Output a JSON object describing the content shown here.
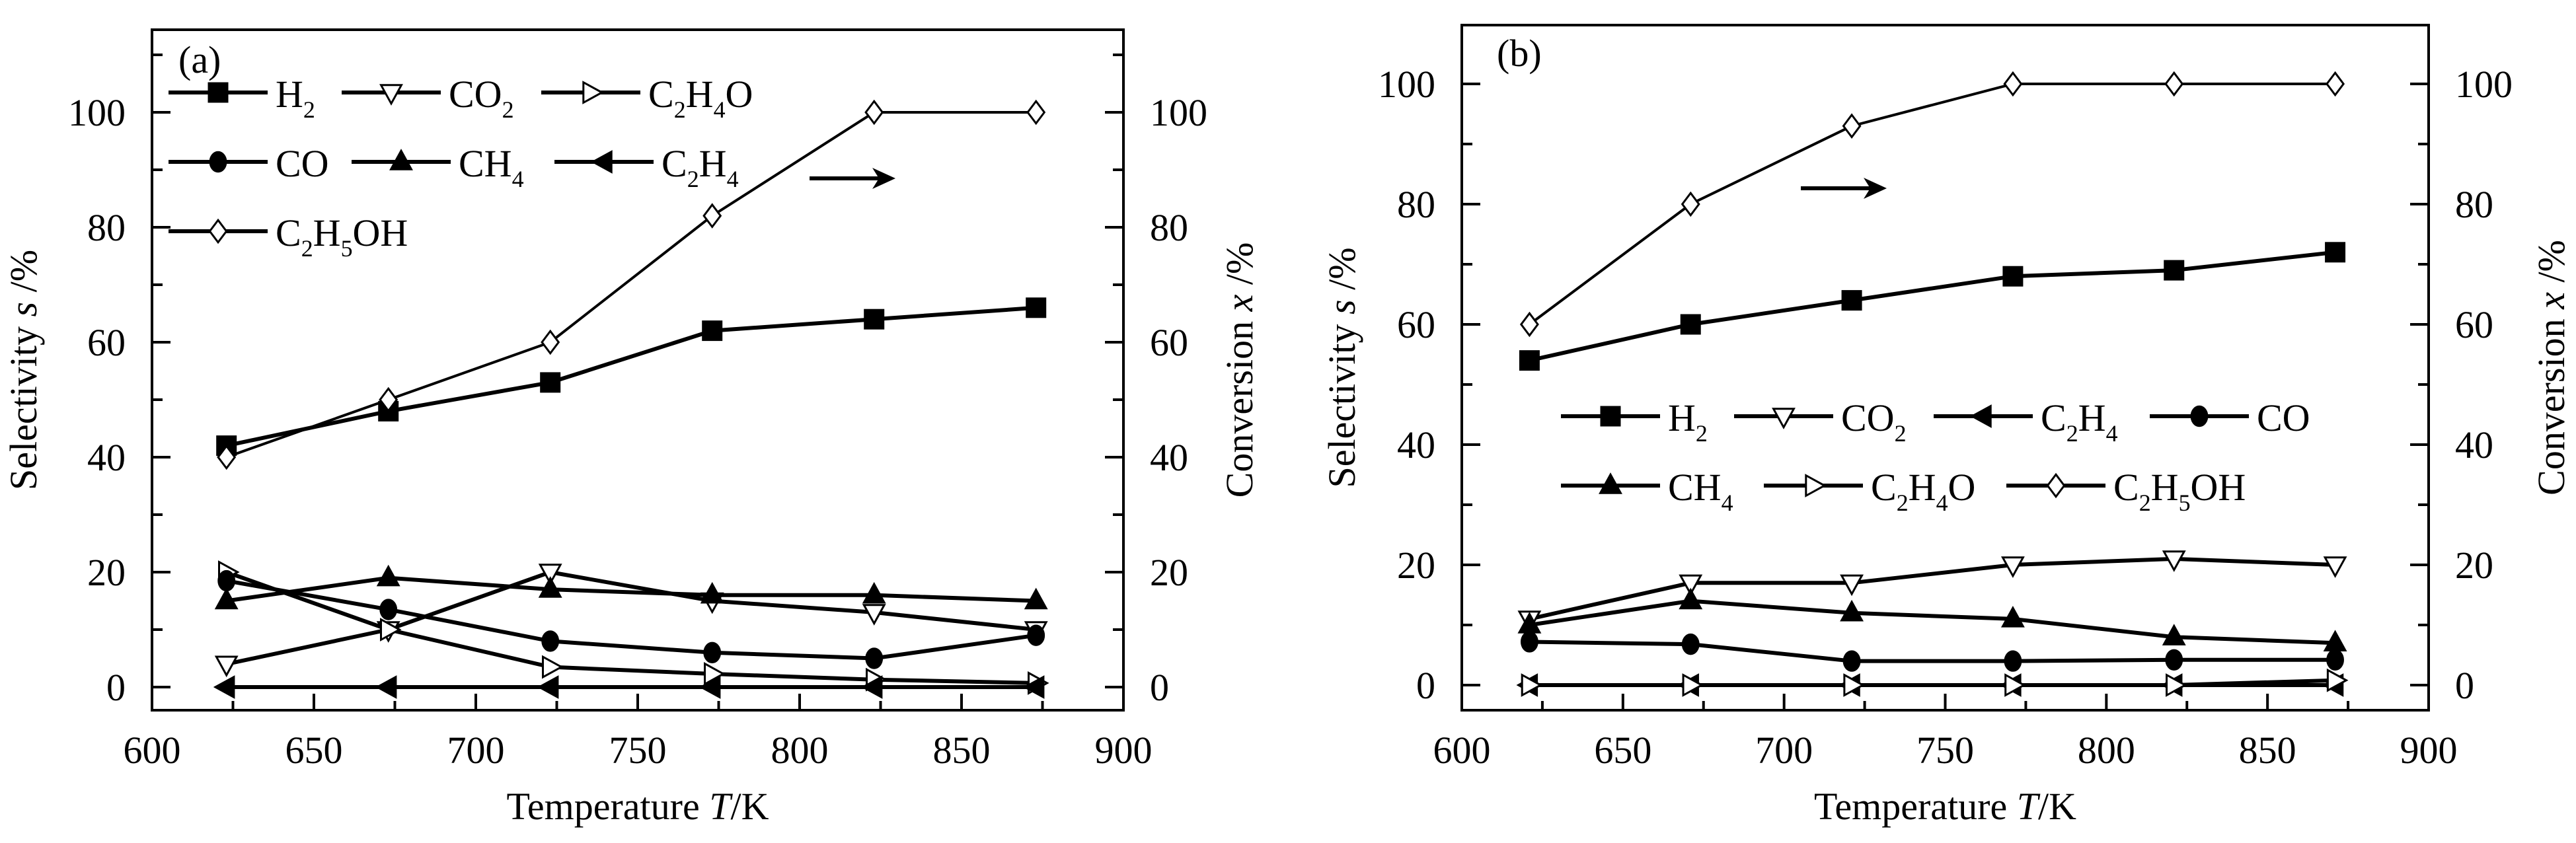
{
  "chart_data": [
    {
      "type": "line",
      "panel_label": "(a)",
      "xlabel": "Temperature",
      "xlabel_var": "T",
      "xlabel_unit": "/K",
      "ylabel": "Selectivity",
      "ylabel_var": "s",
      "ylabel_unit": " /%",
      "y2label": "Conversion",
      "y2label_var": "x",
      "y2label_unit": " /%",
      "xlim": [
        600,
        900
      ],
      "ylim": [
        -4,
        114
      ],
      "xticks": [
        600,
        650,
        700,
        750,
        800,
        850,
        900
      ],
      "yticks": [
        0,
        20,
        40,
        60,
        80,
        100
      ],
      "y2ticks": [
        0,
        20,
        40,
        60,
        80,
        100
      ],
      "x": [
        623,
        673,
        723,
        773,
        823,
        873
      ],
      "legend_position": "top-left",
      "annotation": "arrow pointing right (C2H5OH conversion on right axis)",
      "series": [
        {
          "name": "H2",
          "base": "H",
          "sub": "2",
          "marker": "square-filled",
          "axis": "left",
          "values": [
            42,
            48,
            53,
            62,
            64,
            66
          ]
        },
        {
          "name": "CO2",
          "base": "CO",
          "sub": "2",
          "marker": "triangle-down-open",
          "axis": "left",
          "values": [
            4,
            10,
            20,
            15,
            13,
            10
          ]
        },
        {
          "name": "C2H4O",
          "marker": "triangle-right-open",
          "axis": "left",
          "values": [
            20,
            10,
            3.5,
            2.3,
            1.3,
            0.7
          ]
        },
        {
          "name": "CO",
          "marker": "circle-filled",
          "axis": "left",
          "values": [
            18.5,
            13.5,
            8,
            6,
            5,
            9
          ]
        },
        {
          "name": "CH4",
          "marker": "triangle-up-filled",
          "axis": "left",
          "values": [
            15,
            19,
            17,
            16,
            16,
            15
          ]
        },
        {
          "name": "C2H4",
          "marker": "triangle-left-filled",
          "axis": "left",
          "values": [
            0,
            0,
            0,
            0,
            0,
            0
          ]
        },
        {
          "name": "C2H5OH",
          "marker": "diamond-open",
          "axis": "right",
          "values": [
            40,
            50,
            60,
            82,
            100,
            100
          ]
        }
      ],
      "legend_rows": [
        [
          "H2",
          "CO2",
          "C2H4O"
        ],
        [
          "CO",
          "CH4",
          "C2H4"
        ],
        [
          "C2H5OH"
        ]
      ]
    },
    {
      "type": "line",
      "panel_label": "(b)",
      "xlabel": "Temperature",
      "xlabel_var": "T",
      "xlabel_unit": "/K",
      "ylabel": "Selectivity",
      "ylabel_var": "s",
      "ylabel_unit": " /%",
      "y2label": "Conversion",
      "y2label_var": "x",
      "y2label_unit": " /%",
      "xlim": [
        600,
        900
      ],
      "ylim": [
        -5,
        110
      ],
      "xticks": [
        600,
        650,
        700,
        750,
        800,
        850,
        900
      ],
      "yticks": [
        0,
        20,
        40,
        60,
        80,
        100
      ],
      "y2ticks": [
        0,
        20,
        40,
        60,
        80,
        100
      ],
      "x": [
        621,
        671,
        721,
        771,
        821,
        871
      ],
      "legend_position": "center-left",
      "annotation": "arrow pointing right (C2H5OH conversion on right axis)",
      "series": [
        {
          "name": "H2",
          "marker": "square-filled",
          "axis": "left",
          "values": [
            54,
            60,
            64,
            68,
            69,
            72
          ]
        },
        {
          "name": "CO2",
          "marker": "triangle-down-open",
          "axis": "left",
          "values": [
            11,
            17,
            17,
            20,
            21,
            20
          ]
        },
        {
          "name": "C2H4",
          "marker": "triangle-left-filled",
          "axis": "left",
          "values": [
            0,
            0,
            0,
            0,
            0,
            0
          ]
        },
        {
          "name": "CO",
          "marker": "circle-filled",
          "axis": "left",
          "values": [
            7.2,
            6.8,
            4,
            4,
            4.2,
            4.2
          ]
        },
        {
          "name": "CH4",
          "marker": "triangle-up-filled",
          "axis": "left",
          "values": [
            10,
            14,
            12,
            11,
            8,
            7
          ]
        },
        {
          "name": "C2H4O",
          "marker": "triangle-right-open",
          "axis": "left",
          "values": [
            0,
            0,
            0,
            0,
            0,
            0.8
          ]
        },
        {
          "name": "C2H5OH",
          "marker": "diamond-open",
          "axis": "right",
          "values": [
            60,
            80,
            93,
            100,
            100,
            100
          ]
        }
      ],
      "legend_rows": [
        [
          "H2",
          "CO2",
          "C2H4",
          "CO"
        ],
        [
          "CH4",
          "C2H4O",
          "C2H5OH"
        ]
      ]
    }
  ],
  "formulas": {
    "H2": [
      [
        "H",
        ""
      ],
      [
        "2",
        "sub"
      ]
    ],
    "CO2": [
      [
        "CO",
        ""
      ],
      [
        "2",
        "sub"
      ]
    ],
    "C2H4O": [
      [
        "C",
        ""
      ],
      [
        "2",
        "sub"
      ],
      [
        "H",
        ""
      ],
      [
        "4",
        "sub"
      ],
      [
        "O",
        ""
      ]
    ],
    "CO": [
      [
        "CO",
        ""
      ]
    ],
    "CH4": [
      [
        "CH",
        ""
      ],
      [
        "4",
        "sub"
      ]
    ],
    "C2H4": [
      [
        "C",
        ""
      ],
      [
        "2",
        "sub"
      ],
      [
        "H",
        ""
      ],
      [
        "4",
        "sub"
      ]
    ],
    "C2H5OH": [
      [
        "C",
        ""
      ],
      [
        "2",
        "sub"
      ],
      [
        "H",
        ""
      ],
      [
        "5",
        "sub"
      ],
      [
        "OH",
        ""
      ]
    ]
  }
}
